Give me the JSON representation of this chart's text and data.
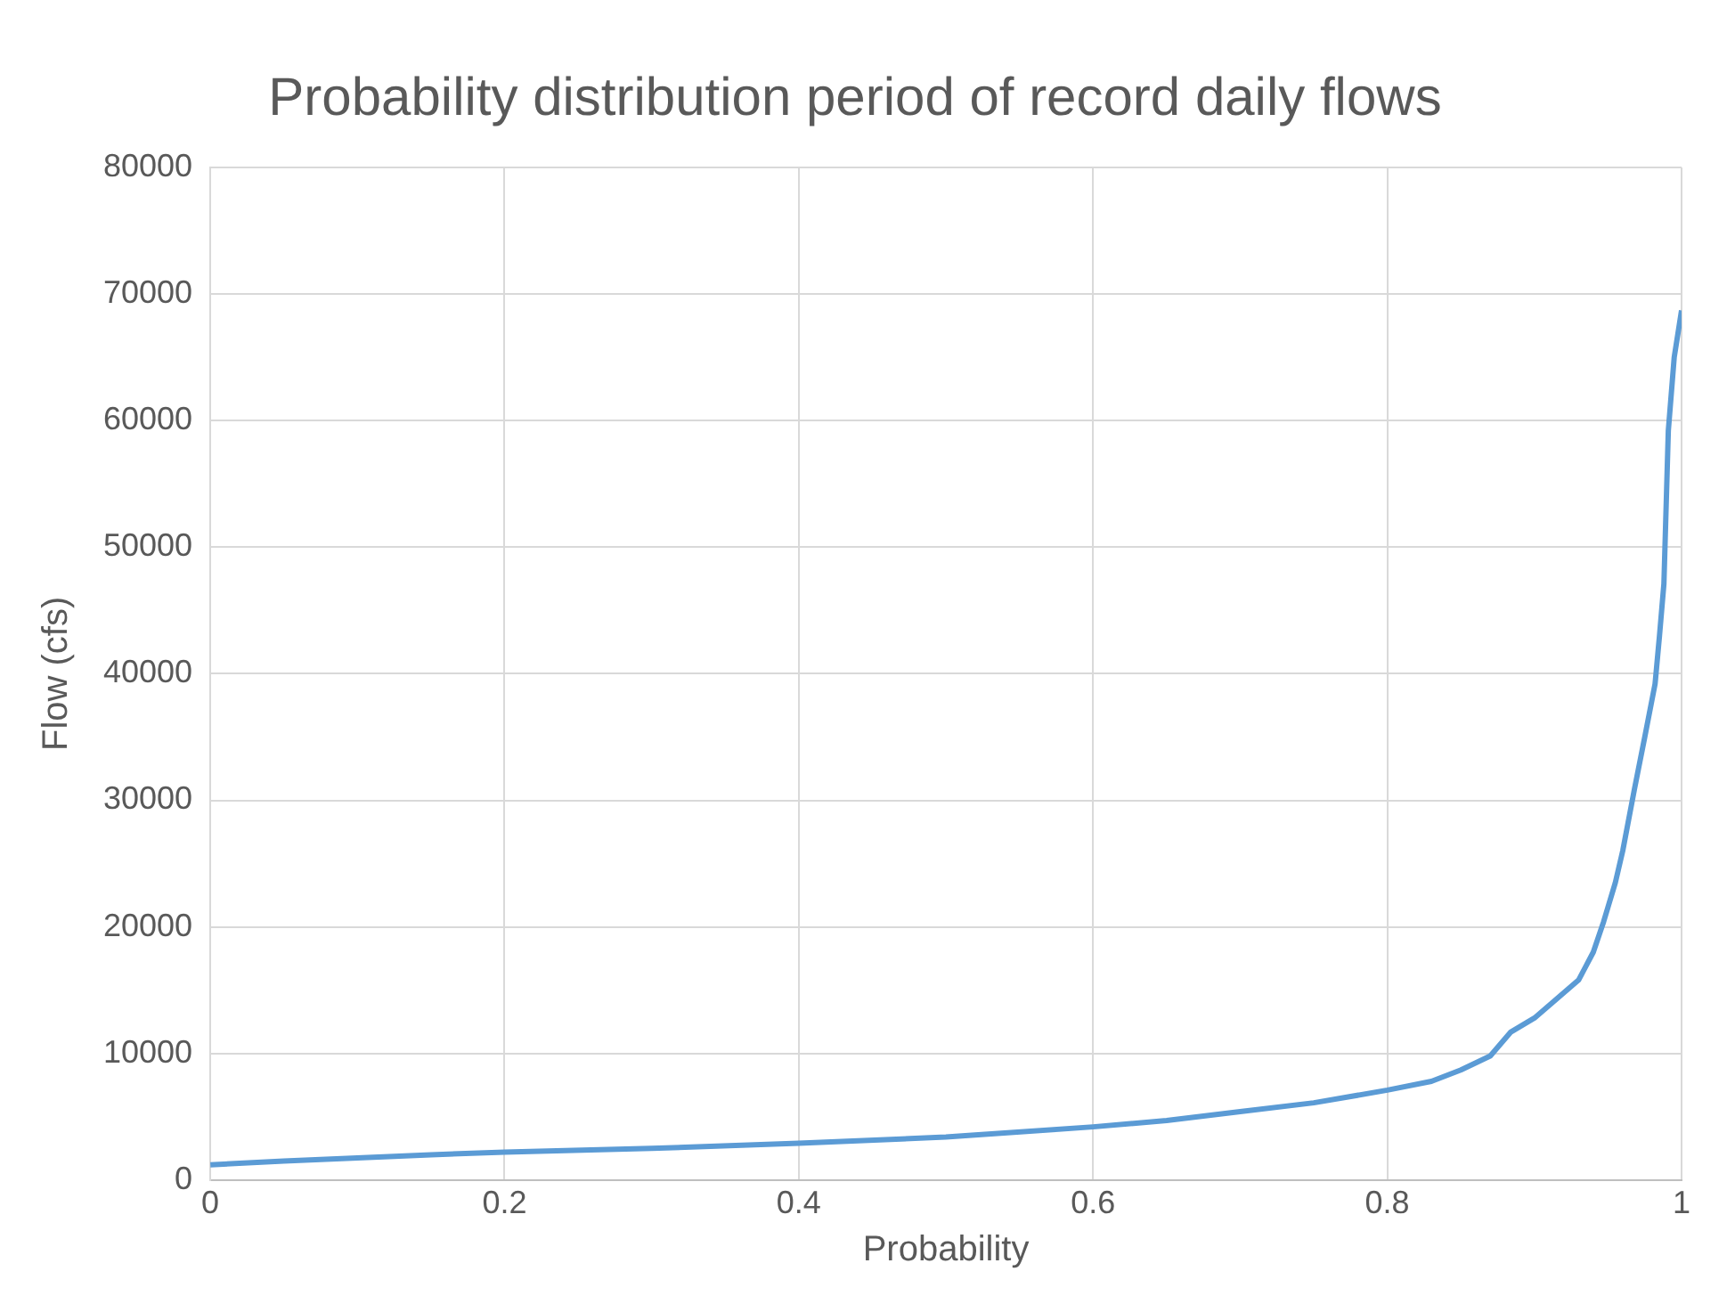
{
  "chart_data": {
    "type": "line",
    "title": "Probability distribution period of record daily flows",
    "xlabel": "Probability",
    "ylabel": "Flow (cfs)",
    "xlim": [
      0,
      1
    ],
    "xticks": [
      0,
      0.2,
      0.4,
      0.6,
      0.8,
      1
    ],
    "ylim": [
      0,
      80000
    ],
    "yticks": [
      0,
      10000,
      20000,
      30000,
      40000,
      50000,
      60000,
      70000,
      80000
    ],
    "grid": true,
    "legend": false,
    "marker": "none",
    "line_style": "solid",
    "series": [
      {
        "color": "#5b9bd5",
        "x": [
          0,
          0.05,
          0.1,
          0.15,
          0.2,
          0.3,
          0.4,
          0.5,
          0.6,
          0.65,
          0.7,
          0.75,
          0.8,
          0.83,
          0.85,
          0.87,
          0.884,
          0.9,
          0.913,
          0.93,
          0.94,
          0.947,
          0.955,
          0.96,
          0.968,
          0.975,
          0.982,
          0.985,
          0.988,
          0.991,
          0.995,
          1
        ],
        "values": [
          1200,
          1500,
          1750,
          2000,
          2200,
          2500,
          2900,
          3400,
          4200,
          4700,
          5400,
          6100,
          7100,
          7800,
          8700,
          9800,
          11700,
          12800,
          14100,
          15800,
          18000,
          20400,
          23500,
          26000,
          30900,
          35000,
          39200,
          43000,
          47100,
          59200,
          65000,
          68700
        ]
      }
    ]
  }
}
